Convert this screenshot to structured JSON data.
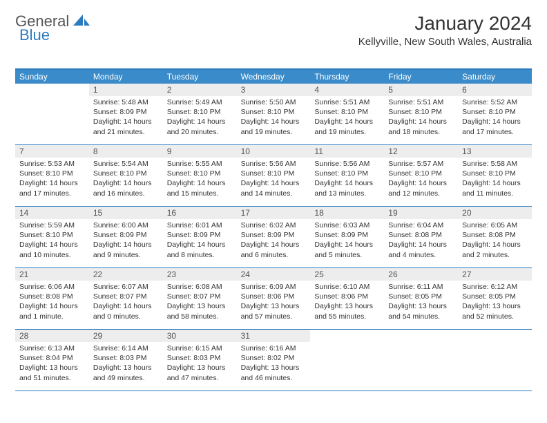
{
  "brand": {
    "part1": "General",
    "part2": "Blue"
  },
  "title": "January 2024",
  "location": "Kellyville, New South Wales, Australia",
  "colors": {
    "header_bar": "#3a8bc9",
    "rule": "#2b7bbf",
    "daynum_bg": "#ededed",
    "text": "#333333",
    "logo_gray": "#555555",
    "logo_blue": "#2b7bbf"
  },
  "dow": [
    "Sunday",
    "Monday",
    "Tuesday",
    "Wednesday",
    "Thursday",
    "Friday",
    "Saturday"
  ],
  "weeks": [
    [
      {
        "n": "",
        "sr": "",
        "ss": "",
        "dl": ""
      },
      {
        "n": "1",
        "sr": "Sunrise: 5:48 AM",
        "ss": "Sunset: 8:09 PM",
        "dl": "Daylight: 14 hours and 21 minutes."
      },
      {
        "n": "2",
        "sr": "Sunrise: 5:49 AM",
        "ss": "Sunset: 8:10 PM",
        "dl": "Daylight: 14 hours and 20 minutes."
      },
      {
        "n": "3",
        "sr": "Sunrise: 5:50 AM",
        "ss": "Sunset: 8:10 PM",
        "dl": "Daylight: 14 hours and 19 minutes."
      },
      {
        "n": "4",
        "sr": "Sunrise: 5:51 AM",
        "ss": "Sunset: 8:10 PM",
        "dl": "Daylight: 14 hours and 19 minutes."
      },
      {
        "n": "5",
        "sr": "Sunrise: 5:51 AM",
        "ss": "Sunset: 8:10 PM",
        "dl": "Daylight: 14 hours and 18 minutes."
      },
      {
        "n": "6",
        "sr": "Sunrise: 5:52 AM",
        "ss": "Sunset: 8:10 PM",
        "dl": "Daylight: 14 hours and 17 minutes."
      }
    ],
    [
      {
        "n": "7",
        "sr": "Sunrise: 5:53 AM",
        "ss": "Sunset: 8:10 PM",
        "dl": "Daylight: 14 hours and 17 minutes."
      },
      {
        "n": "8",
        "sr": "Sunrise: 5:54 AM",
        "ss": "Sunset: 8:10 PM",
        "dl": "Daylight: 14 hours and 16 minutes."
      },
      {
        "n": "9",
        "sr": "Sunrise: 5:55 AM",
        "ss": "Sunset: 8:10 PM",
        "dl": "Daylight: 14 hours and 15 minutes."
      },
      {
        "n": "10",
        "sr": "Sunrise: 5:56 AM",
        "ss": "Sunset: 8:10 PM",
        "dl": "Daylight: 14 hours and 14 minutes."
      },
      {
        "n": "11",
        "sr": "Sunrise: 5:56 AM",
        "ss": "Sunset: 8:10 PM",
        "dl": "Daylight: 14 hours and 13 minutes."
      },
      {
        "n": "12",
        "sr": "Sunrise: 5:57 AM",
        "ss": "Sunset: 8:10 PM",
        "dl": "Daylight: 14 hours and 12 minutes."
      },
      {
        "n": "13",
        "sr": "Sunrise: 5:58 AM",
        "ss": "Sunset: 8:10 PM",
        "dl": "Daylight: 14 hours and 11 minutes."
      }
    ],
    [
      {
        "n": "14",
        "sr": "Sunrise: 5:59 AM",
        "ss": "Sunset: 8:10 PM",
        "dl": "Daylight: 14 hours and 10 minutes."
      },
      {
        "n": "15",
        "sr": "Sunrise: 6:00 AM",
        "ss": "Sunset: 8:09 PM",
        "dl": "Daylight: 14 hours and 9 minutes."
      },
      {
        "n": "16",
        "sr": "Sunrise: 6:01 AM",
        "ss": "Sunset: 8:09 PM",
        "dl": "Daylight: 14 hours and 8 minutes."
      },
      {
        "n": "17",
        "sr": "Sunrise: 6:02 AM",
        "ss": "Sunset: 8:09 PM",
        "dl": "Daylight: 14 hours and 6 minutes."
      },
      {
        "n": "18",
        "sr": "Sunrise: 6:03 AM",
        "ss": "Sunset: 8:09 PM",
        "dl": "Daylight: 14 hours and 5 minutes."
      },
      {
        "n": "19",
        "sr": "Sunrise: 6:04 AM",
        "ss": "Sunset: 8:08 PM",
        "dl": "Daylight: 14 hours and 4 minutes."
      },
      {
        "n": "20",
        "sr": "Sunrise: 6:05 AM",
        "ss": "Sunset: 8:08 PM",
        "dl": "Daylight: 14 hours and 2 minutes."
      }
    ],
    [
      {
        "n": "21",
        "sr": "Sunrise: 6:06 AM",
        "ss": "Sunset: 8:08 PM",
        "dl": "Daylight: 14 hours and 1 minute."
      },
      {
        "n": "22",
        "sr": "Sunrise: 6:07 AM",
        "ss": "Sunset: 8:07 PM",
        "dl": "Daylight: 14 hours and 0 minutes."
      },
      {
        "n": "23",
        "sr": "Sunrise: 6:08 AM",
        "ss": "Sunset: 8:07 PM",
        "dl": "Daylight: 13 hours and 58 minutes."
      },
      {
        "n": "24",
        "sr": "Sunrise: 6:09 AM",
        "ss": "Sunset: 8:06 PM",
        "dl": "Daylight: 13 hours and 57 minutes."
      },
      {
        "n": "25",
        "sr": "Sunrise: 6:10 AM",
        "ss": "Sunset: 8:06 PM",
        "dl": "Daylight: 13 hours and 55 minutes."
      },
      {
        "n": "26",
        "sr": "Sunrise: 6:11 AM",
        "ss": "Sunset: 8:05 PM",
        "dl": "Daylight: 13 hours and 54 minutes."
      },
      {
        "n": "27",
        "sr": "Sunrise: 6:12 AM",
        "ss": "Sunset: 8:05 PM",
        "dl": "Daylight: 13 hours and 52 minutes."
      }
    ],
    [
      {
        "n": "28",
        "sr": "Sunrise: 6:13 AM",
        "ss": "Sunset: 8:04 PM",
        "dl": "Daylight: 13 hours and 51 minutes."
      },
      {
        "n": "29",
        "sr": "Sunrise: 6:14 AM",
        "ss": "Sunset: 8:03 PM",
        "dl": "Daylight: 13 hours and 49 minutes."
      },
      {
        "n": "30",
        "sr": "Sunrise: 6:15 AM",
        "ss": "Sunset: 8:03 PM",
        "dl": "Daylight: 13 hours and 47 minutes."
      },
      {
        "n": "31",
        "sr": "Sunrise: 6:16 AM",
        "ss": "Sunset: 8:02 PM",
        "dl": "Daylight: 13 hours and 46 minutes."
      },
      {
        "n": "",
        "sr": "",
        "ss": "",
        "dl": ""
      },
      {
        "n": "",
        "sr": "",
        "ss": "",
        "dl": ""
      },
      {
        "n": "",
        "sr": "",
        "ss": "",
        "dl": ""
      }
    ]
  ]
}
